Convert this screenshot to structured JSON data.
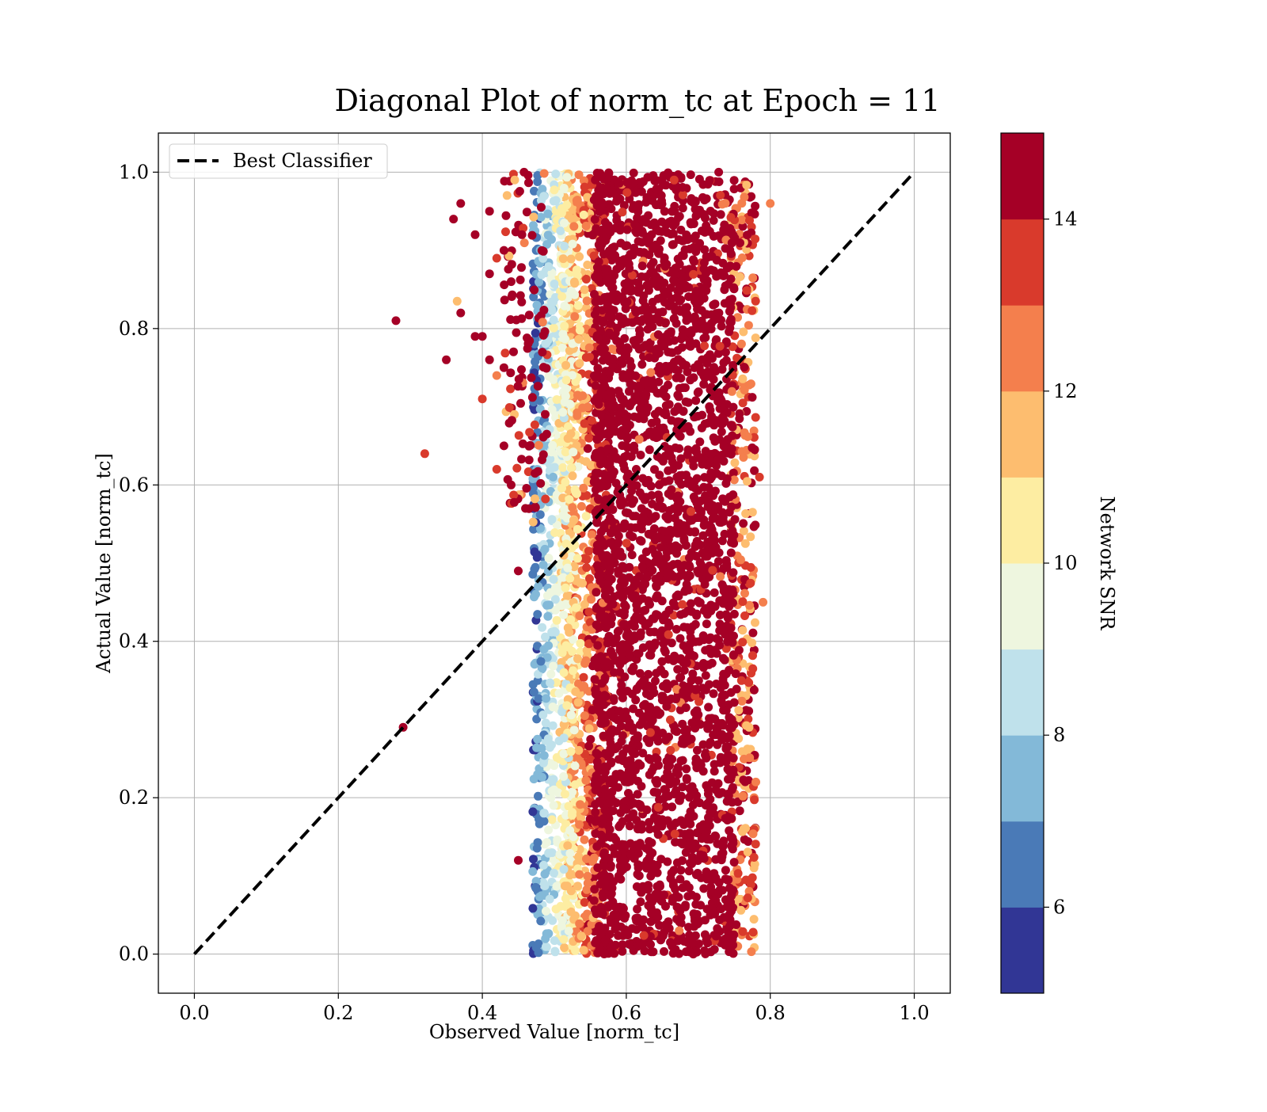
{
  "chart_data": {
    "type": "scatter",
    "title": "Diagonal Plot of norm_tc at Epoch = 11",
    "xlabel": "Observed Value [norm_tc]",
    "ylabel": "Actual Value [norm_tc]",
    "xlim": [
      -0.05,
      1.05
    ],
    "ylim": [
      -0.05,
      1.05
    ],
    "x_ticks": [
      "0.0",
      "0.2",
      "0.4",
      "0.6",
      "0.8",
      "1.0"
    ],
    "y_ticks": [
      "0.0",
      "0.2",
      "0.4",
      "0.6",
      "0.8",
      "1.0"
    ],
    "grid": true,
    "legend": {
      "placement": "top-left",
      "entries": [
        {
          "label": "Best Classifier",
          "style": "black dashed line"
        }
      ]
    },
    "reference_line": {
      "label": "Best Classifier",
      "x": [
        0.0,
        1.0
      ],
      "y": [
        0.0,
        1.0
      ]
    },
    "colorbar": {
      "label": "Network SNR",
      "range": [
        5,
        15
      ],
      "tick_labels": [
        "6",
        "8",
        "10",
        "12",
        "14"
      ],
      "tick_values": [
        6,
        8,
        10,
        12,
        14
      ],
      "colors": [
        "#313695",
        "#4a7ab7",
        "#83b9d8",
        "#bfe1eb",
        "#eef6df",
        "#fdeda2",
        "#fdbd6f",
        "#f47f4d",
        "#d93a2c",
        "#a50026"
      ]
    },
    "series_summary": {
      "x_range_main": [
        0.47,
        0.78
      ],
      "y_range": [
        0.0,
        1.0
      ],
      "trend": "columnar band: observed value ~0.47-0.78 regardless of actual value; low-SNR points at left edge (~0.47-0.52), high-SNR (>=14) dominating 0.55-0.76"
    },
    "outliers": [
      {
        "x": 0.28,
        "y": 0.81,
        "snr": 15
      },
      {
        "x": 0.35,
        "y": 0.76,
        "snr": 15
      },
      {
        "x": 0.36,
        "y": 0.94,
        "snr": 15
      },
      {
        "x": 0.37,
        "y": 0.96,
        "snr": 15
      },
      {
        "x": 0.32,
        "y": 0.64,
        "snr": 13.5
      },
      {
        "x": 0.29,
        "y": 0.29,
        "snr": 15
      },
      {
        "x": 0.37,
        "y": 0.82,
        "snr": 15
      },
      {
        "x": 0.365,
        "y": 0.835,
        "snr": 11.5
      },
      {
        "x": 0.39,
        "y": 0.92,
        "snr": 15
      },
      {
        "x": 0.41,
        "y": 0.95,
        "snr": 15
      },
      {
        "x": 0.4,
        "y": 0.71,
        "snr": 13
      },
      {
        "x": 0.41,
        "y": 0.87,
        "snr": 15
      },
      {
        "x": 0.42,
        "y": 0.62,
        "snr": 13.5
      },
      {
        "x": 0.43,
        "y": 0.65,
        "snr": 15
      },
      {
        "x": 0.44,
        "y": 0.6,
        "snr": 14
      },
      {
        "x": 0.45,
        "y": 0.12,
        "snr": 15
      },
      {
        "x": 0.4,
        "y": 0.79,
        "snr": 15
      },
      {
        "x": 0.41,
        "y": 0.76,
        "snr": 15
      },
      {
        "x": 0.42,
        "y": 0.74,
        "snr": 12
      },
      {
        "x": 0.43,
        "y": 0.75,
        "snr": 15
      },
      {
        "x": 0.39,
        "y": 0.79,
        "snr": 15
      },
      {
        "x": 0.42,
        "y": 0.89,
        "snr": 13
      },
      {
        "x": 0.43,
        "y": 0.9,
        "snr": 15
      },
      {
        "x": 0.44,
        "y": 0.86,
        "snr": 14
      },
      {
        "x": 0.445,
        "y": 0.99,
        "snr": 11.5
      },
      {
        "x": 0.45,
        "y": 0.49,
        "snr": 15
      },
      {
        "x": 0.46,
        "y": 0.57,
        "snr": 15
      },
      {
        "x": 0.455,
        "y": 0.92,
        "snr": 15
      },
      {
        "x": 0.78,
        "y": 0.22,
        "snr": 12.5
      },
      {
        "x": 0.79,
        "y": 0.45,
        "snr": 12.5
      },
      {
        "x": 0.8,
        "y": 0.96,
        "snr": 12.5
      },
      {
        "x": 0.785,
        "y": 0.61,
        "snr": 13.5
      }
    ]
  }
}
